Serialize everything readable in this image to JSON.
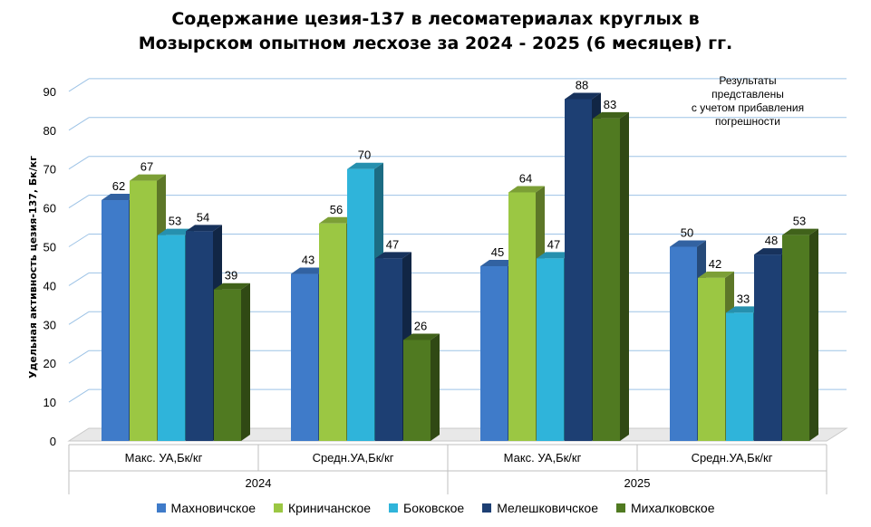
{
  "chart_data": {
    "type": "bar",
    "title_line1": "Содержание цезия-137 в лесоматериалах круглых в",
    "title_line2": "Мозырском опытном лесхозе за 2024 - 2025 (6 месяцев) гг.",
    "ylabel": "Удельная активность цезия-137, Бк/кг",
    "ylim": [
      0,
      90
    ],
    "yticks": [
      "0",
      "10",
      "20",
      "30",
      "40",
      "50",
      "60",
      "70",
      "80",
      "90"
    ],
    "categories": [
      "Макс. УА,Бк/кг",
      "Средн.УА,Бк/кг",
      "Макс. УА,Бк/кг",
      "Средн.УА,Бк/кг"
    ],
    "groups": [
      "2024",
      "2025"
    ],
    "series": [
      {
        "name": "Махновичское",
        "values": [
          62,
          43,
          45,
          50
        ],
        "color": "#3F7BC9"
      },
      {
        "name": "Криничанское",
        "values": [
          67,
          56,
          64,
          42
        ],
        "color": "#9BC743"
      },
      {
        "name": "Боковское",
        "values": [
          53,
          70,
          47,
          33
        ],
        "color": "#2FB4DA"
      },
      {
        "name": "Мелешковичское",
        "values": [
          54,
          47,
          88,
          48
        ],
        "color": "#1D3F73"
      },
      {
        "name": "Михалковское",
        "values": [
          39,
          26,
          83,
          53
        ],
        "color": "#507A21"
      }
    ],
    "note": [
      "Результаты",
      "представлены",
      "с учетом прибавления",
      "погрешности"
    ],
    "grid": true,
    "legend": "bottom"
  }
}
